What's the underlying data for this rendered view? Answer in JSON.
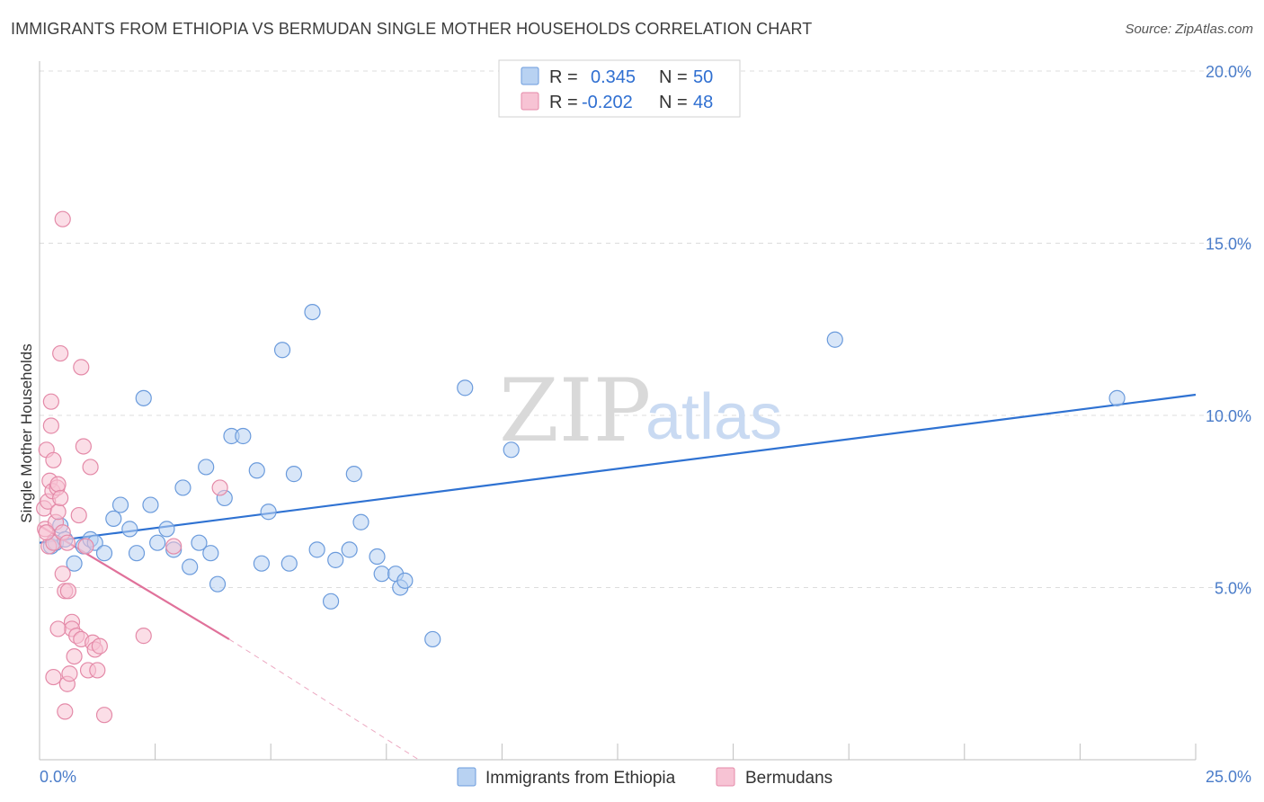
{
  "title": "IMMIGRANTS FROM ETHIOPIA VS BERMUDAN SINGLE MOTHER HOUSEHOLDS CORRELATION CHART",
  "source": "Source: ZipAtlas.com",
  "watermark": {
    "zip": "ZIP",
    "atlas": "atlas"
  },
  "colors": {
    "blue_fill": "#b8d2f2",
    "blue_stroke": "#6b9bdc",
    "blue_line": "#2f72d2",
    "pink_fill": "#f7c3d4",
    "pink_stroke": "#e48aa8",
    "pink_line": "#e0719a",
    "tick_label": "#4a7cc9"
  },
  "legend_top": {
    "rows": [
      {
        "r_label": "R =",
        "r_value": "0.345",
        "n_label": "N =",
        "n_value": "50",
        "swatch": "blue"
      },
      {
        "r_label": "R =",
        "r_value": "-0.202",
        "n_label": "N =",
        "n_value": "48",
        "swatch": "pink"
      }
    ]
  },
  "legend_bottom": [
    {
      "label": "Immigrants from Ethiopia",
      "swatch": "blue"
    },
    {
      "label": "Bermudans",
      "swatch": "pink"
    }
  ],
  "chart_data": {
    "type": "scatter",
    "title": "IMMIGRANTS FROM ETHIOPIA VS BERMUDAN SINGLE MOTHER HOUSEHOLDS CORRELATION CHART",
    "xlabel": "",
    "ylabel": "Single Mother Households",
    "xlim": [
      0,
      25
    ],
    "ylim": [
      0,
      20
    ],
    "x_tick_labels": [
      {
        "value": 0,
        "label": "0.0%"
      },
      {
        "value": 25,
        "label": "25.0%"
      }
    ],
    "y_tick_labels": [
      {
        "value": 5,
        "label": "5.0%"
      },
      {
        "value": 10,
        "label": "10.0%"
      },
      {
        "value": 15,
        "label": "15.0%"
      },
      {
        "value": 20,
        "label": "20.0%"
      }
    ],
    "grid": "horizontal dashed",
    "legend_placement": "top-center",
    "series": [
      {
        "name": "Immigrants from Ethiopia",
        "color": "blue",
        "points": [
          [
            0.25,
            6.2
          ],
          [
            0.35,
            6.3
          ],
          [
            0.45,
            6.8
          ],
          [
            0.55,
            6.4
          ],
          [
            0.75,
            5.7
          ],
          [
            0.95,
            6.2
          ],
          [
            1.1,
            6.4
          ],
          [
            1.2,
            6.3
          ],
          [
            1.4,
            6.0
          ],
          [
            1.6,
            7.0
          ],
          [
            1.75,
            7.4
          ],
          [
            1.95,
            6.7
          ],
          [
            2.1,
            6.0
          ],
          [
            2.25,
            10.5
          ],
          [
            2.4,
            7.4
          ],
          [
            2.55,
            6.3
          ],
          [
            2.75,
            6.7
          ],
          [
            2.9,
            6.1
          ],
          [
            3.1,
            7.9
          ],
          [
            3.25,
            5.6
          ],
          [
            3.45,
            6.3
          ],
          [
            3.6,
            8.5
          ],
          [
            3.7,
            6.0
          ],
          [
            3.85,
            5.1
          ],
          [
            4.0,
            7.6
          ],
          [
            4.15,
            9.4
          ],
          [
            4.4,
            9.4
          ],
          [
            4.7,
            8.4
          ],
          [
            4.8,
            5.7
          ],
          [
            4.95,
            7.2
          ],
          [
            5.25,
            11.9
          ],
          [
            5.4,
            5.7
          ],
          [
            5.5,
            8.3
          ],
          [
            5.9,
            13.0
          ],
          [
            6.0,
            6.1
          ],
          [
            6.3,
            4.6
          ],
          [
            6.4,
            5.8
          ],
          [
            6.7,
            6.1
          ],
          [
            6.8,
            8.3
          ],
          [
            6.95,
            6.9
          ],
          [
            7.3,
            5.9
          ],
          [
            7.4,
            5.4
          ],
          [
            7.7,
            5.4
          ],
          [
            7.8,
            5.0
          ],
          [
            7.9,
            5.2
          ],
          [
            8.5,
            3.5
          ],
          [
            9.2,
            10.8
          ],
          [
            10.2,
            9.0
          ],
          [
            17.2,
            12.2
          ],
          [
            23.3,
            10.5
          ]
        ],
        "trendline": {
          "x": [
            0,
            25
          ],
          "y": [
            6.3,
            10.6
          ]
        }
      },
      {
        "name": "Bermudans",
        "color": "pink",
        "points": [
          [
            0.1,
            7.3
          ],
          [
            0.12,
            6.7
          ],
          [
            0.15,
            9.0
          ],
          [
            0.18,
            7.5
          ],
          [
            0.2,
            6.2
          ],
          [
            0.22,
            8.1
          ],
          [
            0.25,
            9.7
          ],
          [
            0.25,
            10.4
          ],
          [
            0.28,
            7.8
          ],
          [
            0.3,
            6.3
          ],
          [
            0.3,
            8.7
          ],
          [
            0.35,
            6.9
          ],
          [
            0.38,
            7.9
          ],
          [
            0.4,
            7.2
          ],
          [
            0.4,
            8.0
          ],
          [
            0.45,
            11.8
          ],
          [
            0.45,
            7.6
          ],
          [
            0.5,
            6.6
          ],
          [
            0.5,
            5.4
          ],
          [
            0.55,
            4.9
          ],
          [
            0.6,
            6.3
          ],
          [
            0.6,
            2.2
          ],
          [
            0.62,
            4.9
          ],
          [
            0.65,
            2.5
          ],
          [
            0.7,
            4.0
          ],
          [
            0.7,
            3.8
          ],
          [
            0.75,
            3.0
          ],
          [
            0.8,
            3.6
          ],
          [
            0.85,
            7.1
          ],
          [
            0.9,
            11.4
          ],
          [
            0.9,
            3.5
          ],
          [
            0.95,
            9.1
          ],
          [
            1.0,
            6.2
          ],
          [
            1.05,
            2.6
          ],
          [
            1.1,
            8.5
          ],
          [
            1.15,
            3.4
          ],
          [
            1.2,
            3.2
          ],
          [
            1.25,
            2.6
          ],
          [
            1.3,
            3.3
          ],
          [
            1.4,
            1.3
          ],
          [
            0.5,
            15.7
          ],
          [
            0.4,
            3.8
          ],
          [
            0.55,
            1.4
          ],
          [
            0.3,
            2.4
          ],
          [
            2.25,
            3.6
          ],
          [
            2.9,
            6.2
          ],
          [
            3.9,
            7.9
          ],
          [
            0.15,
            6.6
          ]
        ],
        "trendline": {
          "x": [
            0,
            4.1
          ],
          "y": [
            6.8,
            3.5
          ]
        },
        "trendline_extension": {
          "x": [
            4.1,
            8.2
          ],
          "y": [
            3.5,
            0.0
          ]
        }
      }
    ]
  }
}
